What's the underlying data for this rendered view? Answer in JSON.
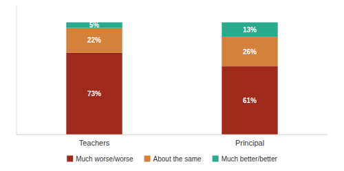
{
  "chart_data": {
    "type": "bar",
    "stacked": true,
    "categories": [
      "Teachers",
      "Principal"
    ],
    "series": [
      {
        "name": "Much worse/worse",
        "color": "#9e2a1c",
        "values": [
          73,
          61
        ],
        "value_labels": [
          "73%",
          "61%"
        ]
      },
      {
        "name": "About the same",
        "color": "#d4813a",
        "values": [
          22,
          26
        ],
        "value_labels": [
          "22%",
          "26%"
        ]
      },
      {
        "name": "Much better/better",
        "color": "#2aaa8a",
        "values": [
          5,
          13
        ],
        "value_labels": [
          "5%",
          "13%"
        ]
      }
    ],
    "ylim": [
      0,
      115
    ],
    "data_labels": true,
    "tick_labels": "x",
    "grid": false,
    "legend": "bottom"
  }
}
